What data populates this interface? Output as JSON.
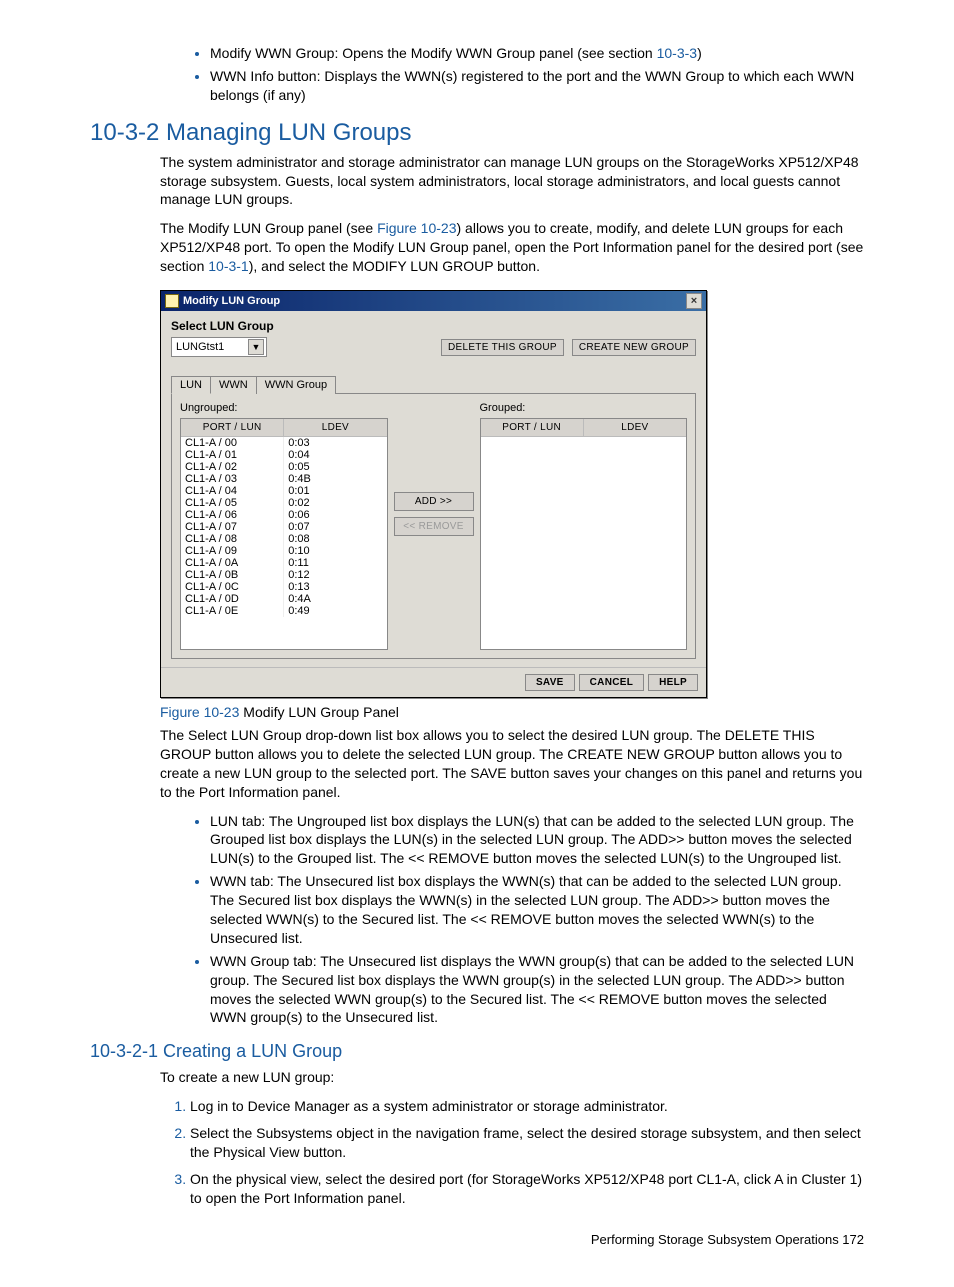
{
  "intro_bullets": [
    {
      "pre": "Modify WWN Group:  Opens the Modify WWN Group panel (see section ",
      "link": "10-3-3",
      "post": ")"
    },
    {
      "pre": "WWN Info button:  Displays the WWN(s) registered to the port and the WWN Group to which each WWN belongs (if any)",
      "link": "",
      "post": ""
    }
  ],
  "heading_10_3_2": "10-3-2 Managing LUN Groups",
  "para1": "The system administrator and storage administrator can manage LUN groups on the StorageWorks XP512/XP48 storage subsystem. Guests, local system administrators, local storage administrators, and local guests cannot manage LUN groups.",
  "para2_pre": "The Modify LUN Group panel (see ",
  "para2_link1": "Figure 10-23",
  "para2_mid": ") allows you to create, modify, and delete LUN groups for each XP512/XP48 port. To open the Modify LUN Group panel, open the Port Information panel for the desired port (see section ",
  "para2_link2": "10-3-1",
  "para2_post": "), and select the MODIFY LUN GROUP button.",
  "dialog": {
    "title": "Modify LUN Group",
    "select_label": "Select LUN Group",
    "combo_value": "LUNGtst1",
    "btn_delete": "DELETE THIS GROUP",
    "btn_create": "CREATE NEW GROUP",
    "tabs": [
      "LUN",
      "WWN",
      "WWN Group"
    ],
    "ungrouped_label": "Ungrouped:",
    "grouped_label": "Grouped:",
    "col_portlun": "PORT / LUN",
    "col_ldev": "LDEV",
    "rows": [
      {
        "p": "CL1-A / 00",
        "l": "0:03"
      },
      {
        "p": "CL1-A / 01",
        "l": "0:04"
      },
      {
        "p": "CL1-A / 02",
        "l": "0:05"
      },
      {
        "p": "CL1-A / 03",
        "l": "0:4B"
      },
      {
        "p": "CL1-A / 04",
        "l": "0:01"
      },
      {
        "p": "CL1-A / 05",
        "l": "0:02"
      },
      {
        "p": "CL1-A / 06",
        "l": "0:06"
      },
      {
        "p": "CL1-A / 07",
        "l": "0:07"
      },
      {
        "p": "CL1-A / 08",
        "l": "0:08"
      },
      {
        "p": "CL1-A / 09",
        "l": "0:10"
      },
      {
        "p": "CL1-A / 0A",
        "l": "0:11"
      },
      {
        "p": "CL1-A / 0B",
        "l": "0:12"
      },
      {
        "p": "CL1-A / 0C",
        "l": "0:13"
      },
      {
        "p": "CL1-A / 0D",
        "l": "0:4A"
      },
      {
        "p": "CL1-A / 0E",
        "l": "0:49"
      }
    ],
    "btn_add": "ADD >>",
    "btn_remove": "<< REMOVE",
    "btn_save": "SAVE",
    "btn_cancel": "CANCEL",
    "btn_help": "HELP"
  },
  "fig_caption_num": "Figure 10-23",
  "fig_caption_txt": " Modify LUN Group Panel",
  "para3": "The Select LUN Group drop-down list box allows you to select the desired LUN group. The DELETE THIS GROUP button allows you to delete the selected LUN group. The CREATE NEW GROUP button allows you to create a new LUN group to the selected port. The SAVE button saves your changes on this panel and returns you to the Port Information panel.",
  "tab_bullets": [
    "LUN tab: The Ungrouped list box displays the LUN(s) that can be added to the selected LUN group. The Grouped list box displays the LUN(s) in the selected LUN group. The ADD>> button moves the selected LUN(s) to the Grouped list. The << REMOVE button moves the selected LUN(s) to the Ungrouped list.",
    "WWN tab: The Unsecured list box displays the WWN(s) that can be added to the selected LUN group. The Secured list box displays the WWN(s) in the selected LUN group. The ADD>> button moves the selected WWN(s) to the Secured list. The << REMOVE button moves the selected WWN(s) to the Unsecured list.",
    "WWN Group tab: The Unsecured list displays the WWN group(s) that can be added to the selected LUN group. The Secured list box displays the WWN group(s) in the selected LUN group. The ADD>> button moves the selected WWN group(s) to the Secured list. The << REMOVE button moves the selected WWN group(s) to the Unsecured list."
  ],
  "heading_10_3_2_1": "10-3-2-1 Creating a LUN Group",
  "para4": "To create a new LUN group:",
  "steps": [
    "Log in to Device Manager as a system administrator or storage administrator.",
    "Select the Subsystems object in the navigation frame, select the desired storage subsystem, and then select the Physical View button.",
    "On the physical view, select the desired port (for StorageWorks XP512/XP48 port CL1-A, click A in Cluster 1) to open the Port Information panel."
  ],
  "footer": "Performing Storage Subsystem Operations   172"
}
